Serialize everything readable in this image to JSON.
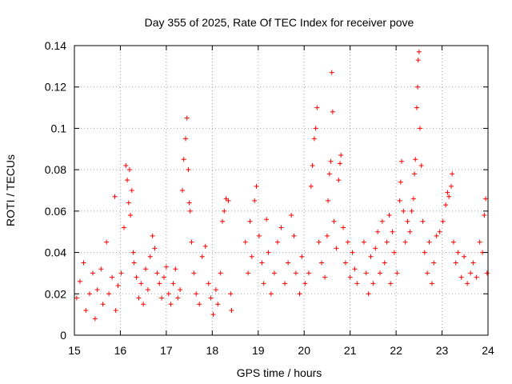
{
  "chart_data": {
    "type": "scatter",
    "title": "Day 355 of 2025, Rate Of TEC Index for receiver pove",
    "xlabel": "GPS time / hours",
    "ylabel": "ROTI / TECUs",
    "xlim": [
      15,
      24
    ],
    "ylim": [
      0,
      0.14
    ],
    "xticks": [
      "15",
      "16",
      "17",
      "18",
      "19",
      "20",
      "21",
      "22",
      "23",
      "24"
    ],
    "yticks": [
      "0",
      "0.02",
      "0.04",
      "0.06",
      "0.08",
      "0.1",
      "0.12",
      "0.14"
    ],
    "grid": true,
    "marker": "+",
    "color": "#ff0000",
    "series": [
      {
        "name": "ROTI",
        "points": [
          [
            15.05,
            0.018
          ],
          [
            15.12,
            0.026
          ],
          [
            15.2,
            0.035
          ],
          [
            15.25,
            0.012
          ],
          [
            15.33,
            0.02
          ],
          [
            15.4,
            0.03
          ],
          [
            15.45,
            0.008
          ],
          [
            15.5,
            0.022
          ],
          [
            15.58,
            0.032
          ],
          [
            15.62,
            0.015
          ],
          [
            15.7,
            0.045
          ],
          [
            15.75,
            0.02
          ],
          [
            15.82,
            0.028
          ],
          [
            15.88,
            0.067
          ],
          [
            15.9,
            0.012
          ],
          [
            15.95,
            0.024
          ],
          [
            16.02,
            0.03
          ],
          [
            16.08,
            0.052
          ],
          [
            16.12,
            0.082
          ],
          [
            16.15,
            0.075
          ],
          [
            16.18,
            0.064
          ],
          [
            16.2,
            0.08
          ],
          [
            16.22,
            0.058
          ],
          [
            16.25,
            0.07
          ],
          [
            16.28,
            0.04
          ],
          [
            16.3,
            0.035
          ],
          [
            16.35,
            0.028
          ],
          [
            16.4,
            0.018
          ],
          [
            16.45,
            0.025
          ],
          [
            16.5,
            0.015
          ],
          [
            16.55,
            0.032
          ],
          [
            16.6,
            0.022
          ],
          [
            16.65,
            0.038
          ],
          [
            16.7,
            0.048
          ],
          [
            16.75,
            0.042
          ],
          [
            16.8,
            0.03
          ],
          [
            16.85,
            0.025
          ],
          [
            16.9,
            0.018
          ],
          [
            16.95,
            0.028
          ],
          [
            17.0,
            0.033
          ],
          [
            17.05,
            0.02
          ],
          [
            17.1,
            0.015
          ],
          [
            17.15,
            0.025
          ],
          [
            17.2,
            0.032
          ],
          [
            17.25,
            0.018
          ],
          [
            17.3,
            0.022
          ],
          [
            17.35,
            0.07
          ],
          [
            17.38,
            0.085
          ],
          [
            17.42,
            0.095
          ],
          [
            17.45,
            0.105
          ],
          [
            17.48,
            0.08
          ],
          [
            17.5,
            0.064
          ],
          [
            17.52,
            0.06
          ],
          [
            17.55,
            0.045
          ],
          [
            17.6,
            0.03
          ],
          [
            17.65,
            0.02
          ],
          [
            17.72,
            0.015
          ],
          [
            17.78,
            0.038
          ],
          [
            17.85,
            0.043
          ],
          [
            17.92,
            0.025
          ],
          [
            17.97,
            0.018
          ],
          [
            18.02,
            0.01
          ],
          [
            18.08,
            0.022
          ],
          [
            18.12,
            0.015
          ],
          [
            18.18,
            0.03
          ],
          [
            18.22,
            0.055
          ],
          [
            18.26,
            0.06
          ],
          [
            18.3,
            0.066
          ],
          [
            18.35,
            0.065
          ],
          [
            18.4,
            0.02
          ],
          [
            18.42,
            0.012
          ],
          [
            18.72,
            0.045
          ],
          [
            18.78,
            0.03
          ],
          [
            18.82,
            0.055
          ],
          [
            18.86,
            0.038
          ],
          [
            18.92,
            0.065
          ],
          [
            18.96,
            0.072
          ],
          [
            19.02,
            0.048
          ],
          [
            19.08,
            0.035
          ],
          [
            19.12,
            0.025
          ],
          [
            19.18,
            0.056
          ],
          [
            19.22,
            0.04
          ],
          [
            19.28,
            0.02
          ],
          [
            19.35,
            0.03
          ],
          [
            19.42,
            0.045
          ],
          [
            19.5,
            0.052
          ],
          [
            19.58,
            0.025
          ],
          [
            19.65,
            0.035
          ],
          [
            19.72,
            0.058
          ],
          [
            19.78,
            0.048
          ],
          [
            19.82,
            0.03
          ],
          [
            19.9,
            0.02
          ],
          [
            19.95,
            0.038
          ],
          [
            20.02,
            0.025
          ],
          [
            20.1,
            0.03
          ],
          [
            20.15,
            0.072
          ],
          [
            20.18,
            0.082
          ],
          [
            20.22,
            0.095
          ],
          [
            20.25,
            0.1
          ],
          [
            20.28,
            0.11
          ],
          [
            20.32,
            0.045
          ],
          [
            20.38,
            0.035
          ],
          [
            20.45,
            0.028
          ],
          [
            20.5,
            0.048
          ],
          [
            20.52,
            0.065
          ],
          [
            20.55,
            0.078
          ],
          [
            20.58,
            0.084
          ],
          [
            20.6,
            0.127
          ],
          [
            20.62,
            0.108
          ],
          [
            20.65,
            0.055
          ],
          [
            20.7,
            0.042
          ],
          [
            20.75,
            0.075
          ],
          [
            20.78,
            0.083
          ],
          [
            20.8,
            0.087
          ],
          [
            20.85,
            0.052
          ],
          [
            20.9,
            0.035
          ],
          [
            20.95,
            0.045
          ],
          [
            21.0,
            0.028
          ],
          [
            21.05,
            0.04
          ],
          [
            21.1,
            0.032
          ],
          [
            21.15,
            0.025
          ],
          [
            21.3,
            0.045
          ],
          [
            21.35,
            0.03
          ],
          [
            21.4,
            0.02
          ],
          [
            21.45,
            0.038
          ],
          [
            21.5,
            0.025
          ],
          [
            21.55,
            0.042
          ],
          [
            21.6,
            0.05
          ],
          [
            21.65,
            0.03
          ],
          [
            21.7,
            0.055
          ],
          [
            21.75,
            0.035
          ],
          [
            21.8,
            0.045
          ],
          [
            21.85,
            0.058
          ],
          [
            21.88,
            0.025
          ],
          [
            21.92,
            0.05
          ],
          [
            21.96,
            0.04
          ],
          [
            22.02,
            0.03
          ],
          [
            22.08,
            0.065
          ],
          [
            22.1,
            0.074
          ],
          [
            22.12,
            0.084
          ],
          [
            22.16,
            0.06
          ],
          [
            22.2,
            0.045
          ],
          [
            22.25,
            0.055
          ],
          [
            22.3,
            0.05
          ],
          [
            22.34,
            0.06
          ],
          [
            22.38,
            0.066
          ],
          [
            22.4,
            0.078
          ],
          [
            22.42,
            0.085
          ],
          [
            22.45,
            0.11
          ],
          [
            22.47,
            0.12
          ],
          [
            22.48,
            0.133
          ],
          [
            22.5,
            0.137
          ],
          [
            22.52,
            0.1
          ],
          [
            22.55,
            0.082
          ],
          [
            22.58,
            0.055
          ],
          [
            22.62,
            0.04
          ],
          [
            22.68,
            0.03
          ],
          [
            22.72,
            0.045
          ],
          [
            22.78,
            0.025
          ],
          [
            22.82,
            0.035
          ],
          [
            22.88,
            0.048
          ],
          [
            22.95,
            0.05
          ],
          [
            23.02,
            0.055
          ],
          [
            23.08,
            0.063
          ],
          [
            23.12,
            0.069
          ],
          [
            23.15,
            0.067
          ],
          [
            23.2,
            0.072
          ],
          [
            23.22,
            0.078
          ],
          [
            23.25,
            0.045
          ],
          [
            23.3,
            0.035
          ],
          [
            23.35,
            0.04
          ],
          [
            23.42,
            0.028
          ],
          [
            23.48,
            0.038
          ],
          [
            23.55,
            0.025
          ],
          [
            23.62,
            0.03
          ],
          [
            23.68,
            0.035
          ],
          [
            23.75,
            0.028
          ],
          [
            23.82,
            0.045
          ],
          [
            23.88,
            0.04
          ],
          [
            23.92,
            0.058
          ],
          [
            23.95,
            0.066
          ],
          [
            23.98,
            0.03
          ]
        ]
      }
    ]
  }
}
